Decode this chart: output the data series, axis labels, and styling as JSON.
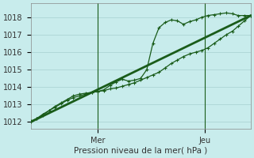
{
  "xlabel": "Pression niveau de la mer( hPa )",
  "bg_color": "#c8ecec",
  "grid_color": "#b0d8d8",
  "line_color": "#1a5c1a",
  "ylim": [
    1011.6,
    1018.8
  ],
  "xlim": [
    0,
    72
  ],
  "x_ticks_pos": [
    22,
    57
  ],
  "x_tick_labels": [
    "Mer",
    "Jeu"
  ],
  "y_ticks": [
    1012,
    1013,
    1014,
    1015,
    1016,
    1017,
    1018
  ],
  "vline_positions": [
    22,
    57
  ],
  "trend_x": [
    0,
    72
  ],
  "trend_y": [
    1012.0,
    1018.1
  ],
  "line1_x": [
    0,
    2,
    4,
    6,
    8,
    10,
    12,
    14,
    16,
    18,
    20,
    22,
    24,
    26,
    28,
    30,
    32,
    34,
    36,
    38,
    40,
    42,
    44,
    46,
    48,
    50,
    52,
    54,
    56,
    58,
    60,
    62,
    64,
    66,
    68,
    70,
    72
  ],
  "line1_y": [
    1012.0,
    1012.2,
    1012.4,
    1012.65,
    1012.85,
    1013.05,
    1013.25,
    1013.4,
    1013.5,
    1013.6,
    1013.7,
    1013.75,
    1013.8,
    1013.9,
    1013.95,
    1014.05,
    1014.15,
    1014.25,
    1014.4,
    1014.55,
    1014.7,
    1014.85,
    1015.1,
    1015.35,
    1015.55,
    1015.75,
    1015.9,
    1016.0,
    1016.1,
    1016.25,
    1016.5,
    1016.75,
    1017.0,
    1017.2,
    1017.5,
    1017.8,
    1018.1
  ],
  "line2_x": [
    0,
    2,
    4,
    6,
    8,
    10,
    12,
    14,
    16,
    18,
    20,
    22,
    24,
    26,
    28,
    30,
    32,
    34,
    36,
    38,
    40,
    42,
    44,
    46,
    48,
    50,
    52,
    54,
    56,
    58,
    60,
    62,
    64,
    66,
    68,
    70,
    72
  ],
  "line2_y": [
    1012.05,
    1012.2,
    1012.45,
    1012.65,
    1012.9,
    1013.1,
    1013.3,
    1013.5,
    1013.6,
    1013.65,
    1013.7,
    1013.75,
    1013.85,
    1014.1,
    1014.3,
    1014.45,
    1014.35,
    1014.4,
    1014.5,
    1015.0,
    1016.5,
    1017.4,
    1017.7,
    1017.85,
    1017.8,
    1017.6,
    1017.75,
    1017.85,
    1018.0,
    1018.1,
    1018.15,
    1018.2,
    1018.25,
    1018.2,
    1018.1,
    1018.1,
    1018.1
  ]
}
